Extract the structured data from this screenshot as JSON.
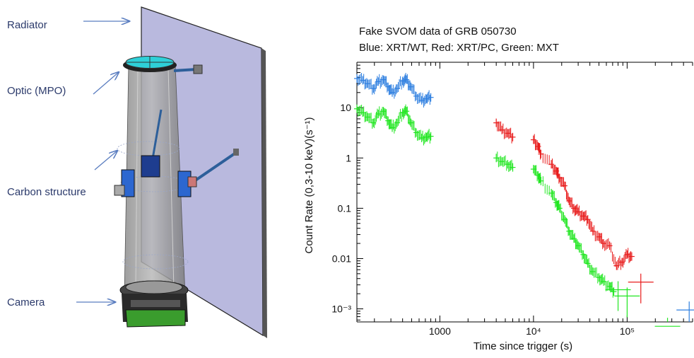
{
  "instrument": {
    "labels": {
      "radiator": "Radiator",
      "optic": "Optic (MPO)",
      "carbon": "Carbon structure",
      "camera": "Camera"
    }
  },
  "chart_data": {
    "type": "scatter",
    "title": "Fake SVOM data of GRB 050730",
    "subtitle": "Blue: XRT/WT, Red: XRT/PC, Green: MXT",
    "xlabel": "Time since trigger (s)",
    "ylabel": "Count Rate (0,3-10 keV)(s⁻¹)",
    "x_scale": "log",
    "y_scale": "log",
    "xlim": [
      130,
      500000
    ],
    "ylim": [
      0.00055,
      80
    ],
    "x_ticks": [
      1000,
      10000,
      100000
    ],
    "x_tick_labels": [
      "1000",
      "10⁴",
      "10⁵"
    ],
    "y_ticks": [
      0.001,
      0.01,
      0.1,
      1,
      10
    ],
    "y_tick_labels": [
      "10⁻³",
      "0.01",
      "0.1",
      "1",
      "10"
    ],
    "series": [
      {
        "name": "XRT/WT",
        "color": "#2e7fe0",
        "points": [
          [
            130,
            38
          ],
          [
            150,
            35
          ],
          [
            170,
            30
          ],
          [
            195,
            24
          ],
          [
            220,
            33
          ],
          [
            250,
            36
          ],
          [
            280,
            26
          ],
          [
            310,
            20
          ],
          [
            350,
            24
          ],
          [
            400,
            34
          ],
          [
            440,
            36
          ],
          [
            490,
            26
          ],
          [
            560,
            17
          ],
          [
            640,
            14
          ],
          [
            720,
            15
          ],
          [
            800,
            16
          ]
        ],
        "late_points": [
          [
            460000,
            0.00095
          ]
        ]
      },
      {
        "name": "XRT/PC",
        "color": "#e81c1c",
        "points": [
          [
            4000,
            5.0
          ],
          [
            4600,
            3.6
          ],
          [
            5300,
            3.1
          ],
          [
            6000,
            2.6
          ],
          [
            10000,
            2.3
          ],
          [
            11200,
            1.7
          ],
          [
            12000,
            1.2
          ],
          [
            15500,
            0.75
          ],
          [
            17500,
            0.55
          ],
          [
            19000,
            0.4
          ],
          [
            21500,
            0.28
          ],
          [
            24000,
            0.14
          ],
          [
            27000,
            0.1
          ],
          [
            30000,
            0.085
          ],
          [
            34000,
            0.07
          ],
          [
            38000,
            0.06
          ],
          [
            43000,
            0.035
          ],
          [
            50000,
            0.027
          ],
          [
            56000,
            0.02
          ],
          [
            65000,
            0.018
          ],
          [
            77000,
            0.0072
          ],
          [
            88000,
            0.0085
          ],
          [
            100000,
            0.012
          ],
          [
            112000,
            0.011
          ]
        ],
        "late_points": [
          [
            140000,
            0.0034
          ]
        ]
      },
      {
        "name": "MXT",
        "color": "#21e621",
        "points": [
          [
            130,
            9.5
          ],
          [
            150,
            8.0
          ],
          [
            170,
            6.5
          ],
          [
            195,
            5.0
          ],
          [
            220,
            7.5
          ],
          [
            250,
            8.5
          ],
          [
            280,
            5.5
          ],
          [
            310,
            4.0
          ],
          [
            350,
            5.0
          ],
          [
            400,
            8.0
          ],
          [
            440,
            8.5
          ],
          [
            490,
            5.0
          ],
          [
            560,
            3.2
          ],
          [
            640,
            2.5
          ],
          [
            720,
            2.6
          ],
          [
            800,
            2.7
          ],
          [
            4000,
            1.0
          ],
          [
            4600,
            0.85
          ],
          [
            5300,
            0.75
          ],
          [
            6000,
            0.65
          ],
          [
            10000,
            0.6
          ],
          [
            11200,
            0.45
          ],
          [
            12000,
            0.35
          ],
          [
            15500,
            0.2
          ],
          [
            17500,
            0.13
          ],
          [
            19000,
            0.1
          ],
          [
            21500,
            0.06
          ],
          [
            24000,
            0.035
          ],
          [
            27000,
            0.025
          ],
          [
            30000,
            0.018
          ],
          [
            34000,
            0.012
          ],
          [
            38000,
            0.008
          ],
          [
            43000,
            0.0055
          ],
          [
            50000,
            0.0042
          ],
          [
            56000,
            0.0035
          ],
          [
            65000,
            0.0028
          ],
          [
            72000,
            0.0022
          ]
        ],
        "late_points": [
          [
            80000,
            0.0024
          ],
          [
            100000,
            0.0018
          ],
          [
            270000,
            0.00045
          ]
        ]
      }
    ]
  }
}
